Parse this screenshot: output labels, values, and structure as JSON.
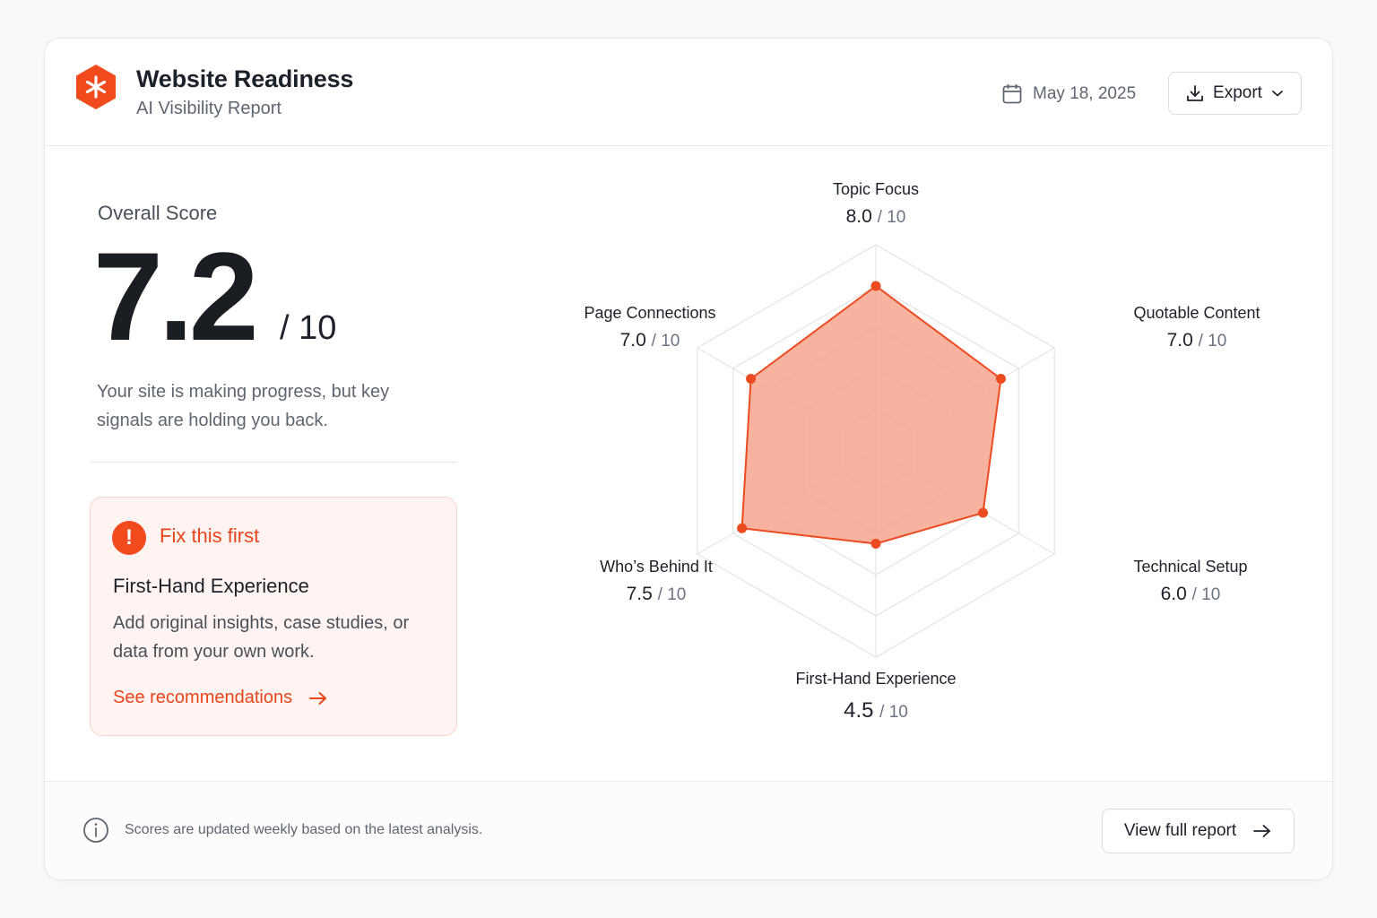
{
  "header": {
    "title": "Website Readiness",
    "subtitle": "AI Visibility Report",
    "date": "May 18, 2025",
    "export_label": "Export",
    "logo_icon": "asterisk-hexagon-icon",
    "brand_color": "#f04a1d"
  },
  "overall": {
    "label": "Overall Score",
    "score": "7.2",
    "denominator": "/ 10",
    "description": "Your site is making progress, but key signals are holding you back."
  },
  "fix": {
    "title": "Fix this first",
    "heading": "First-Hand Experience",
    "text": "Add original insights, case studies, or data from your own work.",
    "link_label": "See recommendations",
    "icon": "alert-icon"
  },
  "chart_data": {
    "type": "radar",
    "max": 10,
    "axes": [
      {
        "label": "Topic Focus",
        "value": 8.0,
        "display": "8.0",
        "denom": "/ 10",
        "highlight": false
      },
      {
        "label": "Quotable Content",
        "value": 7.0,
        "display": "7.0",
        "denom": "/ 10",
        "highlight": false
      },
      {
        "label": "Technical Setup",
        "value": 6.0,
        "display": "6.0",
        "denom": "/ 10",
        "highlight": false
      },
      {
        "label": "First-Hand Experience",
        "value": 4.5,
        "display": "4.5",
        "denom": "/ 10",
        "highlight": true
      },
      {
        "label": "Who’s Behind It",
        "value": 7.5,
        "display": "7.5",
        "denom": "/ 10",
        "highlight": false
      },
      {
        "label": "Page Connections",
        "value": 7.0,
        "display": "7.0",
        "denom": "/ 10",
        "highlight": false
      }
    ],
    "fill_color": "#f7a58f",
    "stroke_color": "#ec4a1f",
    "highlight_color": "#ec4a1f",
    "grid": true
  },
  "footer": {
    "text": "Scores are updated weekly based on the latest analysis.",
    "button_label": "View full report"
  }
}
